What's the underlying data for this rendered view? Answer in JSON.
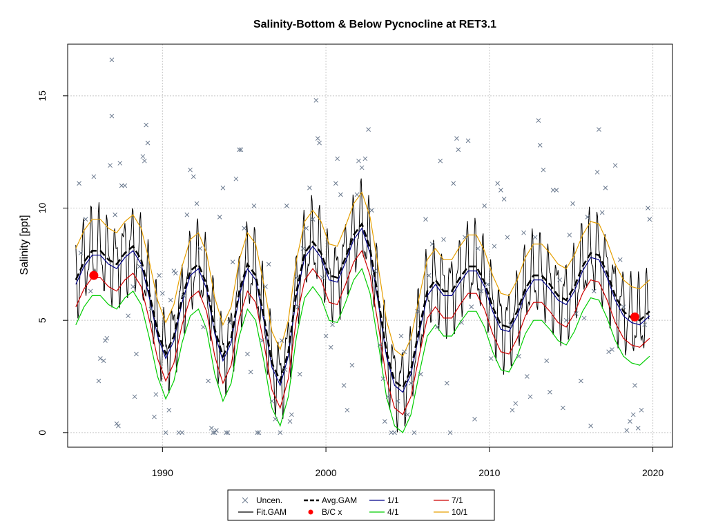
{
  "chart_data": {
    "type": "line",
    "title": "Salinity-Bottom & Below Pycnocline at RET3.1",
    "ylabel": "Salinity [ppt]",
    "xlabel": "",
    "xlim": [
      1984.2,
      2021.2
    ],
    "ylim": [
      -0.65,
      17.3
    ],
    "x_ticks": [
      1990,
      2000,
      2010,
      2020
    ],
    "y_ticks": [
      0,
      5,
      10,
      15
    ],
    "grid": true,
    "legend_position": "bottom",
    "colors": {
      "uncen": "#6b7a8f",
      "fit_gam": "#000000",
      "avg_gam": "#000000",
      "bc": "#ff0000",
      "s1_1": "#00008b",
      "s4_1": "#00cd00",
      "s7_1": "#cd0000",
      "s10_1": "#e69f00"
    },
    "legend": [
      {
        "key": "uncen",
        "label": "Uncen."
      },
      {
        "key": "fit_gam",
        "label": "Fit.GAM"
      },
      {
        "key": "avg_gam",
        "label": "Avg.GAM"
      },
      {
        "key": "bc",
        "label": "B/C x"
      },
      {
        "key": "s1_1",
        "label": "1/1"
      },
      {
        "key": "s4_1",
        "label": "4/1"
      },
      {
        "key": "s7_1",
        "label": "7/1"
      },
      {
        "key": "s10_1",
        "label": "10/1"
      }
    ],
    "bc_points": [
      {
        "x": 1985.8,
        "y": 7.0
      },
      {
        "x": 2018.9,
        "y": 5.15
      }
    ],
    "avg_gam": {
      "x": [
        1984.7,
        1985.2,
        1985.7,
        1986.2,
        1986.7,
        1987.2,
        1987.7,
        1988.2,
        1988.7,
        1989.2,
        1989.7,
        1990.2,
        1990.7,
        1991.2,
        1991.7,
        1992.2,
        1992.7,
        1993.2,
        1993.7,
        1994.2,
        1994.7,
        1995.2,
        1995.7,
        1996.2,
        1996.7,
        1997.2,
        1997.7,
        1998.2,
        1998.7,
        1999.2,
        1999.7,
        2000.2,
        2000.7,
        2001.2,
        2001.7,
        2002.2,
        2002.7,
        2003.2,
        2003.7,
        2004.2,
        2004.7,
        2005.2,
        2005.7,
        2006.2,
        2006.7,
        2007.2,
        2007.7,
        2008.2,
        2008.7,
        2009.2,
        2009.7,
        2010.2,
        2010.7,
        2011.2,
        2011.7,
        2012.2,
        2012.7,
        2013.2,
        2013.7,
        2014.2,
        2014.7,
        2015.2,
        2015.7,
        2016.2,
        2016.7,
        2017.2,
        2017.7,
        2018.2,
        2018.7,
        2019.2,
        2019.8
      ],
      "y": [
        6.8,
        7.6,
        8.1,
        8.1,
        7.7,
        7.5,
        8.0,
        8.3,
        7.7,
        6.2,
        4.5,
        3.5,
        4.3,
        6.0,
        7.2,
        7.5,
        6.6,
        4.6,
        3.4,
        4.2,
        6.3,
        7.5,
        7.0,
        5.2,
        3.1,
        2.3,
        3.6,
        6.3,
        8.0,
        8.5,
        8.0,
        7.0,
        6.9,
        7.8,
        8.8,
        9.3,
        8.2,
        6.0,
        3.6,
        2.3,
        2.0,
        2.8,
        4.6,
        6.3,
        6.8,
        6.3,
        6.3,
        6.9,
        7.4,
        7.4,
        6.7,
        5.6,
        4.8,
        4.7,
        5.4,
        6.4,
        7.0,
        7.0,
        6.6,
        6.1,
        5.9,
        6.5,
        7.4,
        8.0,
        7.9,
        7.1,
        6.1,
        5.4,
        5.1,
        5.0,
        5.4
      ]
    },
    "offsets": {
      "s1_1": -0.2,
      "s4_1": -2.0,
      "s7_1": -1.2,
      "s10_1": 1.4
    },
    "uncen_points": [
      [
        1984.9,
        11.1
      ],
      [
        1985.0,
        8.0
      ],
      [
        1985.3,
        9.5
      ],
      [
        1985.6,
        6.3
      ],
      [
        1985.8,
        11.4
      ],
      [
        1986.1,
        2.3
      ],
      [
        1986.2,
        3.3
      ],
      [
        1986.4,
        3.2
      ],
      [
        1986.5,
        4.1
      ],
      [
        1986.6,
        4.2
      ],
      [
        1986.8,
        11.9
      ],
      [
        1986.9,
        16.6
      ],
      [
        1986.9,
        14.1
      ],
      [
        1987.1,
        9.7
      ],
      [
        1987.2,
        0.4
      ],
      [
        1987.3,
        0.3
      ],
      [
        1987.4,
        12.0
      ],
      [
        1987.5,
        11.0
      ],
      [
        1987.7,
        11.0
      ],
      [
        1987.9,
        5.2
      ],
      [
        1988.2,
        6.5
      ],
      [
        1988.3,
        1.6
      ],
      [
        1988.4,
        3.5
      ],
      [
        1988.6,
        7.4
      ],
      [
        1988.8,
        12.3
      ],
      [
        1988.9,
        12.1
      ],
      [
        1989.0,
        13.7
      ],
      [
        1989.1,
        12.9
      ],
      [
        1989.3,
        5.5
      ],
      [
        1989.5,
        0.7
      ],
      [
        1989.6,
        1.7
      ],
      [
        1989.8,
        7.0
      ],
      [
        1990.0,
        6.2
      ],
      [
        1990.2,
        0.0
      ],
      [
        1990.4,
        1.0
      ],
      [
        1990.5,
        5.9
      ],
      [
        1990.7,
        7.2
      ],
      [
        1990.8,
        7.1
      ],
      [
        1991.0,
        0.0
      ],
      [
        1991.2,
        0.0
      ],
      [
        1991.3,
        6.1
      ],
      [
        1991.5,
        9.7
      ],
      [
        1991.7,
        11.7
      ],
      [
        1991.9,
        11.4
      ],
      [
        1992.1,
        10.2
      ],
      [
        1992.3,
        8.2
      ],
      [
        1992.5,
        4.7
      ],
      [
        1992.8,
        2.3
      ],
      [
        1993.0,
        0.2
      ],
      [
        1993.1,
        0.0
      ],
      [
        1993.2,
        0.0
      ],
      [
        1993.3,
        0.1
      ],
      [
        1993.5,
        9.6
      ],
      [
        1993.7,
        10.9
      ],
      [
        1993.9,
        0.0
      ],
      [
        1994.0,
        0.0
      ],
      [
        1994.1,
        4.9
      ],
      [
        1994.3,
        7.6
      ],
      [
        1994.5,
        11.3
      ],
      [
        1994.7,
        12.6
      ],
      [
        1994.8,
        12.6
      ],
      [
        1995.0,
        9.1
      ],
      [
        1995.2,
        3.5
      ],
      [
        1995.4,
        2.7
      ],
      [
        1995.6,
        10.1
      ],
      [
        1995.8,
        0.0
      ],
      [
        1995.9,
        0.0
      ],
      [
        1996.1,
        4.1
      ],
      [
        1996.3,
        6.5
      ],
      [
        1996.5,
        7.5
      ],
      [
        1996.7,
        1.4
      ],
      [
        1996.9,
        0.6
      ],
      [
        1997.2,
        0.0
      ],
      [
        1997.3,
        4.1
      ],
      [
        1997.5,
        2.8
      ],
      [
        1997.6,
        10.1
      ],
      [
        1997.8,
        0.5
      ],
      [
        1997.9,
        0.8
      ],
      [
        1998.2,
        6.9
      ],
      [
        1998.3,
        5.6
      ],
      [
        1998.4,
        2.6
      ],
      [
        1998.6,
        8.2
      ],
      [
        1998.8,
        9.1
      ],
      [
        1999.0,
        10.9
      ],
      [
        1999.2,
        9.5
      ],
      [
        1999.4,
        14.8
      ],
      [
        1999.5,
        13.1
      ],
      [
        1999.6,
        12.9
      ],
      [
        1999.8,
        6.9
      ],
      [
        2000.0,
        4.3
      ],
      [
        2000.3,
        3.8
      ],
      [
        2000.4,
        4.8
      ],
      [
        2000.6,
        11.1
      ],
      [
        2000.7,
        12.2
      ],
      [
        2000.9,
        10.6
      ],
      [
        2001.1,
        2.1
      ],
      [
        2001.3,
        1.0
      ],
      [
        2001.6,
        3.0
      ],
      [
        2001.9,
        10.6
      ],
      [
        2002.0,
        12.1
      ],
      [
        2002.2,
        11.8
      ],
      [
        2002.4,
        12.2
      ],
      [
        2002.6,
        13.5
      ],
      [
        2002.8,
        9.9
      ],
      [
        2003.0,
        7.2
      ],
      [
        2003.3,
        3.9
      ],
      [
        2003.5,
        2.4
      ],
      [
        2003.6,
        0.5
      ],
      [
        2003.8,
        1.6
      ],
      [
        2004.0,
        0.0
      ],
      [
        2004.2,
        0.0
      ],
      [
        2004.4,
        1.4
      ],
      [
        2004.6,
        4.3
      ],
      [
        2004.8,
        3.6
      ],
      [
        2005.0,
        0.8
      ],
      [
        2005.2,
        2.2
      ],
      [
        2005.4,
        0.0
      ],
      [
        2005.6,
        5.4
      ],
      [
        2005.8,
        2.6
      ],
      [
        2006.1,
        9.5
      ],
      [
        2006.3,
        7.0
      ],
      [
        2006.5,
        8.4
      ],
      [
        2006.8,
        4.7
      ],
      [
        2007.0,
        12.1
      ],
      [
        2007.2,
        8.6
      ],
      [
        2007.4,
        2.2
      ],
      [
        2007.6,
        0.0
      ],
      [
        2007.8,
        11.1
      ],
      [
        2008.0,
        13.1
      ],
      [
        2008.1,
        12.6
      ],
      [
        2008.3,
        4.9
      ],
      [
        2008.5,
        8.7
      ],
      [
        2008.7,
        13.0
      ],
      [
        2008.9,
        5.6
      ],
      [
        2009.1,
        0.6
      ],
      [
        2009.3,
        8.2
      ],
      [
        2009.5,
        6.3
      ],
      [
        2009.7,
        10.1
      ],
      [
        2009.9,
        6.6
      ],
      [
        2010.1,
        3.3
      ],
      [
        2010.3,
        8.3
      ],
      [
        2010.5,
        11.1
      ],
      [
        2010.7,
        10.8
      ],
      [
        2010.9,
        10.4
      ],
      [
        2011.1,
        8.7
      ],
      [
        2011.3,
        4.8
      ],
      [
        2011.4,
        1.0
      ],
      [
        2011.6,
        1.3
      ],
      [
        2011.8,
        3.4
      ],
      [
        2012.1,
        8.9
      ],
      [
        2012.3,
        2.5
      ],
      [
        2012.5,
        1.6
      ],
      [
        2012.8,
        8.7
      ],
      [
        2013.0,
        13.9
      ],
      [
        2013.1,
        12.8
      ],
      [
        2013.3,
        11.7
      ],
      [
        2013.5,
        3.2
      ],
      [
        2013.7,
        1.8
      ],
      [
        2013.9,
        10.8
      ],
      [
        2014.1,
        10.8
      ],
      [
        2014.3,
        6.8
      ],
      [
        2014.5,
        1.1
      ],
      [
        2014.7,
        5.0
      ],
      [
        2014.9,
        8.8
      ],
      [
        2015.1,
        10.2
      ],
      [
        2015.3,
        5.3
      ],
      [
        2015.6,
        2.3
      ],
      [
        2015.8,
        5.1
      ],
      [
        2016.0,
        9.6
      ],
      [
        2016.2,
        0.3
      ],
      [
        2016.4,
        6.3
      ],
      [
        2016.6,
        11.6
      ],
      [
        2016.7,
        13.5
      ],
      [
        2016.9,
        9.8
      ],
      [
        2017.1,
        10.9
      ],
      [
        2017.3,
        3.6
      ],
      [
        2017.5,
        3.7
      ],
      [
        2017.7,
        11.9
      ],
      [
        2018.0,
        7.7
      ],
      [
        2018.2,
        5.6
      ],
      [
        2018.4,
        0.1
      ],
      [
        2018.6,
        0.5
      ],
      [
        2018.8,
        0.8
      ],
      [
        2018.9,
        2.1
      ],
      [
        2019.1,
        0.2
      ],
      [
        2019.3,
        1.0
      ],
      [
        2019.5,
        4.8
      ],
      [
        2019.7,
        10.0
      ],
      [
        2019.8,
        9.5
      ]
    ]
  }
}
